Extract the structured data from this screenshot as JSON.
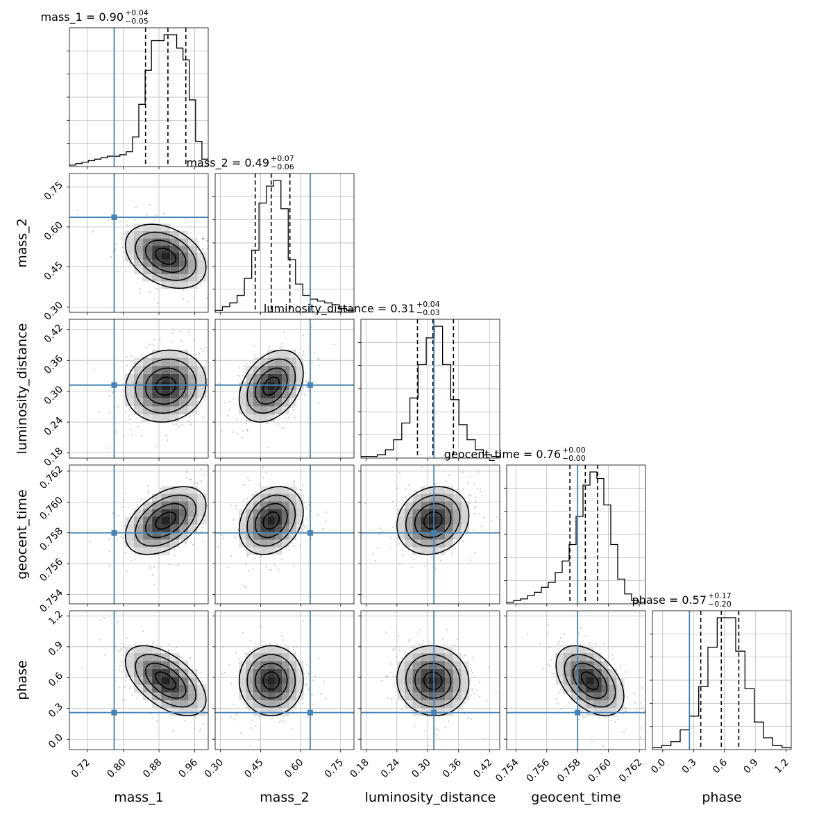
{
  "chart_data": {
    "type": "corner",
    "parameters": [
      "mass_1",
      "mass_2",
      "luminosity_distance",
      "geocent_time",
      "phase"
    ],
    "truths": {
      "mass_1": 0.78,
      "mass_2": 0.636,
      "luminosity_distance": 0.312,
      "geocent_time": 0.758,
      "phase": 0.26
    },
    "colors": {
      "truth": "#4682b4",
      "hist": "#000000",
      "grid": "#b0b0b0"
    },
    "titles": [
      {
        "param": "mass_1",
        "median": "0.90",
        "plus": "+0.04",
        "minus": "−0.05"
      },
      {
        "param": "mass_2",
        "median": "0.49",
        "plus": "+0.07",
        "minus": "−0.06"
      },
      {
        "param": "luminosity_distance",
        "median": "0.31",
        "plus": "+0.04",
        "minus": "−0.03"
      },
      {
        "param": "geocent_time",
        "median": "0.76",
        "plus": "+0.00",
        "minus": "−0.00"
      },
      {
        "param": "phase",
        "median": "0.57",
        "plus": "+0.17",
        "minus": "−0.20"
      }
    ],
    "ranges": {
      "mass_1": [
        0.68,
        0.99
      ],
      "mass_2": [
        0.28,
        0.8
      ],
      "luminosity_distance": [
        0.17,
        0.44
      ],
      "geocent_time": [
        0.7534,
        0.7624
      ],
      "phase": [
        -0.1,
        1.25
      ]
    },
    "ticks": {
      "mass_1": [
        "0.72",
        "0.80",
        "0.88",
        "0.96"
      ],
      "mass_2": [
        "0.30",
        "0.45",
        "0.60",
        "0.75"
      ],
      "luminosity_distance": [
        "0.18",
        "0.24",
        "0.30",
        "0.36",
        "0.42"
      ],
      "geocent_time": [
        "0.754",
        "0.756",
        "0.758",
        "0.760",
        "0.762"
      ],
      "phase": [
        "0.0",
        "0.3",
        "0.6",
        "0.9",
        "1.2"
      ]
    },
    "quantiles": {
      "mass_1": [
        0.85,
        0.9,
        0.94
      ],
      "mass_2": [
        0.43,
        0.49,
        0.56
      ],
      "luminosity_distance": [
        0.28,
        0.31,
        0.35
      ],
      "geocent_time": [
        0.7575,
        0.7585,
        0.7593
      ],
      "phase": [
        0.37,
        0.57,
        0.74
      ]
    },
    "histograms": {
      "mass_1": {
        "edges": [
          0.68,
          0.99
        ],
        "counts": [
          1,
          2,
          3,
          4,
          5,
          6,
          7,
          7,
          8,
          10,
          20,
          42,
          65,
          85,
          85,
          89,
          89,
          80,
          72,
          45,
          17,
          5
        ]
      },
      "mass_2": {
        "edges": [
          0.28,
          0.8
        ],
        "counts": [
          1,
          3,
          5,
          9,
          18,
          33,
          58,
          67,
          70,
          55,
          28,
          15,
          9,
          7,
          6,
          5,
          4,
          2,
          1
        ]
      },
      "luminosity_distance": {
        "edges": [
          0.17,
          0.44
        ],
        "counts": [
          1,
          1,
          2,
          5,
          11,
          21,
          36,
          56,
          72,
          79,
          56,
          35,
          20,
          11,
          5,
          2,
          1
        ]
      },
      "geocent_time": {
        "edges": [
          0.7534,
          0.7624
        ],
        "counts": [
          1,
          2,
          3,
          5,
          7,
          10,
          13,
          19,
          26,
          36,
          53,
          72,
          80,
          76,
          60,
          36,
          15,
          6,
          2,
          1
        ]
      },
      "phase": {
        "edges": [
          -0.1,
          1.25
        ],
        "counts": [
          1,
          2,
          4,
          10,
          17,
          32,
          52,
          67,
          67,
          50,
          31,
          14,
          6,
          2,
          1
        ]
      }
    },
    "posterior_2d": {
      "mass_1|mass_2": {
        "mean": [
          0.895,
          0.49
        ],
        "sd": [
          0.045,
          0.06
        ],
        "rho": -0.35
      },
      "mass_1|luminosity_distance": {
        "mean": [
          0.895,
          0.31
        ],
        "sd": [
          0.045,
          0.035
        ],
        "rho": 0.1
      },
      "mass_1|geocent_time": {
        "mean": [
          0.895,
          0.7588
        ],
        "sd": [
          0.045,
          0.0011
        ],
        "rho": 0.45
      },
      "mass_1|phase": {
        "mean": [
          0.895,
          0.57
        ],
        "sd": [
          0.045,
          0.17
        ],
        "rho": -0.55
      },
      "mass_2|luminosity_distance": {
        "mean": [
          0.49,
          0.31
        ],
        "sd": [
          0.06,
          0.035
        ],
        "rho": 0.35
      },
      "mass_2|geocent_time": {
        "mean": [
          0.49,
          0.7588
        ],
        "sd": [
          0.06,
          0.0011
        ],
        "rho": 0.25
      },
      "mass_2|phase": {
        "mean": [
          0.49,
          0.57
        ],
        "sd": [
          0.06,
          0.17
        ],
        "rho": 0.0
      },
      "luminosity_distance|geocent_time": {
        "mean": [
          0.31,
          0.7588
        ],
        "sd": [
          0.035,
          0.0011
        ],
        "rho": 0.15
      },
      "luminosity_distance|phase": {
        "mean": [
          0.31,
          0.57
        ],
        "sd": [
          0.035,
          0.17
        ],
        "rho": -0.05
      },
      "geocent_time|phase": {
        "mean": [
          0.7588,
          0.57
        ],
        "sd": [
          0.0011,
          0.17
        ],
        "rho": -0.45
      }
    },
    "contour_levels_sigma": [
      0.5,
      1.0,
      1.5,
      2.0
    ],
    "grid": true
  }
}
